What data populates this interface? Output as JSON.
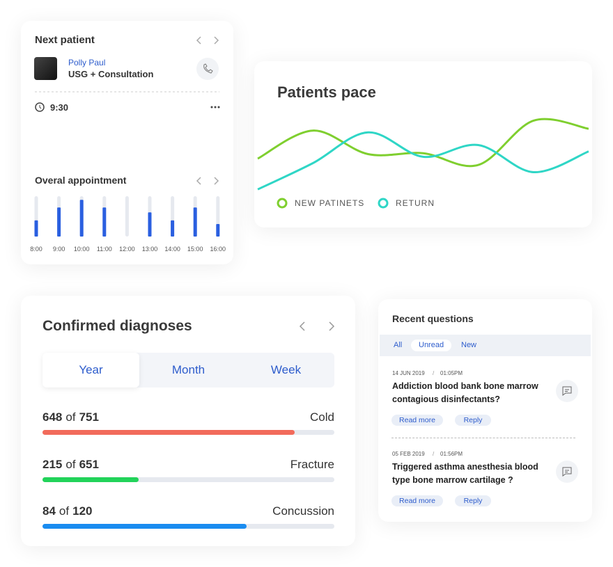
{
  "next_patient": {
    "title": "Next patient",
    "name": "Polly Paul",
    "service": "USG + Consultation",
    "time": "9:30"
  },
  "chart_data": [
    {
      "type": "line",
      "title": "Patients pace",
      "ylim": [
        0,
        100
      ],
      "series": [
        {
          "name": "NEW PATINETS",
          "color": "#7fcf2f",
          "values": [
            40,
            71,
            45,
            46,
            33,
            82,
            73
          ]
        },
        {
          "name": "RETURN",
          "color": "#2fd6c6",
          "values": [
            6,
            35,
            69,
            42,
            55,
            25,
            48
          ]
        }
      ]
    },
    {
      "type": "bar",
      "title": "Overal appointment",
      "color": "#2a5fe0",
      "ylim": [
        0,
        100
      ],
      "categories": [
        "8:00",
        "9:00",
        "10:00",
        "11:00",
        "12:00",
        "13:00",
        "14:00",
        "15:00",
        "16:00"
      ],
      "values": [
        40,
        72,
        91,
        72,
        0,
        60,
        40,
        72,
        31
      ]
    }
  ],
  "diagnoses": {
    "title": "Confirmed diagnoses",
    "tabs": [
      "Year",
      "Month",
      "Week"
    ],
    "of": "of",
    "items": [
      {
        "count": 648,
        "total": 751,
        "label": "Cold",
        "color": "#f26b5b"
      },
      {
        "count": 215,
        "total": 651,
        "label": "Fracture",
        "color": "#22d35a"
      },
      {
        "count": 84,
        "total": 120,
        "label": "Concussion",
        "color": "#1a8cf0"
      }
    ]
  },
  "questions": {
    "title": "Recent questions",
    "tabs": [
      "All",
      "Unread",
      "New"
    ],
    "date_separator": "/",
    "read_more": "Read more",
    "reply": "Reply",
    "items": [
      {
        "date": "14 JUN 2019",
        "time": "01:05PM",
        "text": "Addiction blood bank bone marrow contagious disinfectants?"
      },
      {
        "date": "05 FEB 2019",
        "time": "01:56PM",
        "text": "Triggered asthma anesthesia blood type bone marrow cartilage ?"
      }
    ]
  }
}
